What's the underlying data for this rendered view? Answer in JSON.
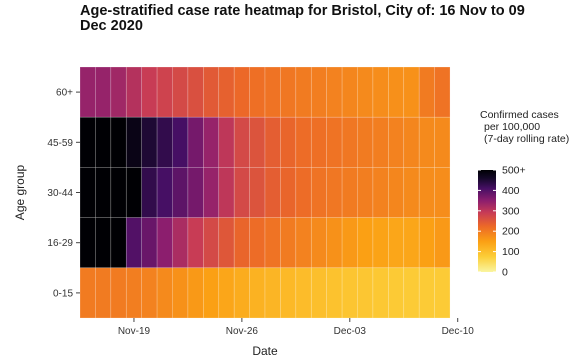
{
  "chart_data": {
    "type": "heatmap",
    "title": "Age-stratified case rate heatmap for Bristol, City of: 16 Nov to 09 Dec 2020",
    "xlabel": "Date",
    "ylabel": "Age group",
    "x_tick_labels": [
      "Nov-19",
      "Nov-26",
      "Dec-03",
      "Dec-10"
    ],
    "dates": [
      "2020-11-16",
      "2020-11-17",
      "2020-11-18",
      "2020-11-19",
      "2020-11-20",
      "2020-11-21",
      "2020-11-22",
      "2020-11-23",
      "2020-11-24",
      "2020-11-25",
      "2020-11-26",
      "2020-11-27",
      "2020-11-28",
      "2020-11-29",
      "2020-11-30",
      "2020-12-01",
      "2020-12-02",
      "2020-12-03",
      "2020-12-04",
      "2020-12-05",
      "2020-12-06",
      "2020-12-07",
      "2020-12-08",
      "2020-12-09"
    ],
    "age_groups": [
      "0-15",
      "16-29",
      "30-44",
      "45-59",
      "60+"
    ],
    "rows": [
      {
        "group": "60+",
        "values": [
          340,
          340,
          330,
          310,
          290,
          280,
          270,
          260,
          245,
          235,
          225,
          215,
          210,
          205,
          200,
          195,
          190,
          185,
          180,
          175,
          172,
          170,
          200,
          210
        ]
      },
      {
        "group": "45-59",
        "values": [
          520,
          520,
          520,
          480,
          450,
          430,
          410,
          370,
          340,
          300,
          270,
          255,
          240,
          230,
          220,
          215,
          210,
          205,
          200,
          195,
          190,
          185,
          180,
          180
        ]
      },
      {
        "group": "30-44",
        "values": [
          520,
          520,
          520,
          520,
          430,
          410,
          390,
          370,
          340,
          300,
          270,
          255,
          240,
          230,
          220,
          210,
          205,
          200,
          195,
          190,
          185,
          180,
          175,
          175
        ]
      },
      {
        "group": "16-29",
        "values": [
          520,
          520,
          520,
          400,
          380,
          350,
          320,
          290,
          270,
          250,
          230,
          220,
          210,
          200,
          190,
          180,
          170,
          160,
          150,
          145,
          140,
          140,
          150,
          160
        ]
      },
      {
        "group": "0-15",
        "values": [
          200,
          200,
          200,
          195,
          190,
          180,
          170,
          160,
          150,
          140,
          130,
          120,
          115,
          110,
          105,
          100,
          95,
          90,
          88,
          85,
          82,
          80,
          80,
          80
        ]
      }
    ],
    "legend": {
      "title_lines": [
        "Confirmed cases",
        "per 100,000",
        "(7-day rolling rate)"
      ],
      "tick_labels": [
        "500+",
        "400",
        "300",
        "200",
        "100",
        "0"
      ],
      "tick_values": [
        500,
        400,
        300,
        200,
        100,
        0
      ],
      "range": [
        0,
        500
      ],
      "placement": "right"
    },
    "grid": false
  }
}
